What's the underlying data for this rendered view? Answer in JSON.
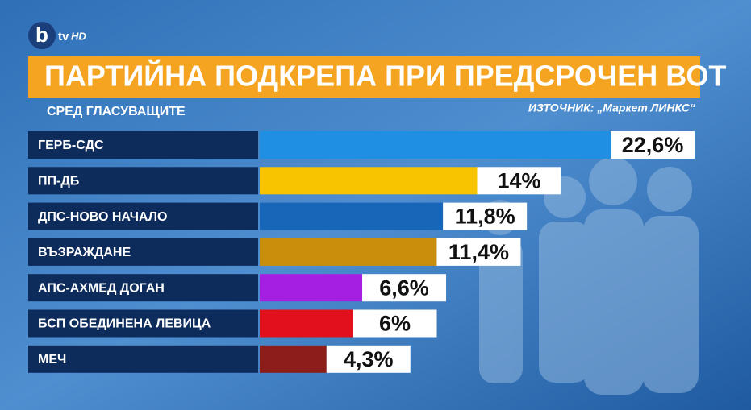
{
  "channel_logo": {
    "b": "b",
    "tv": "tv",
    "hd": "HD"
  },
  "chart_data": {
    "type": "bar",
    "orientation": "horizontal",
    "title": "ПАРТИЙНА ПОДКРЕПА ПРИ ПРЕДСРОЧЕН ВОТ",
    "subtitle": "СРЕД ГЛАСУВАЩИТЕ",
    "source": "ИЗТОЧНИК: „Маркет ЛИНКС“",
    "categories": [
      "ГЕРБ-СДС",
      "ПП-ДБ",
      "ДПС-НОВО НАЧАЛО",
      "ВЪЗРАЖДАНЕ",
      "АПС-АХМЕД ДОГАН",
      "БСП ОБЕДИНЕНА ЛЕВИЦА",
      "МЕЧ"
    ],
    "values": [
      22.6,
      14,
      11.8,
      11.4,
      6.6,
      6,
      4.3
    ],
    "value_labels": [
      "22,6%",
      "14%",
      "11,8%",
      "11,4%",
      "6,6%",
      "6%",
      "4,3%"
    ],
    "colors": [
      "#1e8fe3",
      "#f8c400",
      "#1766b8",
      "#c98f0c",
      "#a51fe3",
      "#e20f1c",
      "#8c1d1a"
    ]
  }
}
